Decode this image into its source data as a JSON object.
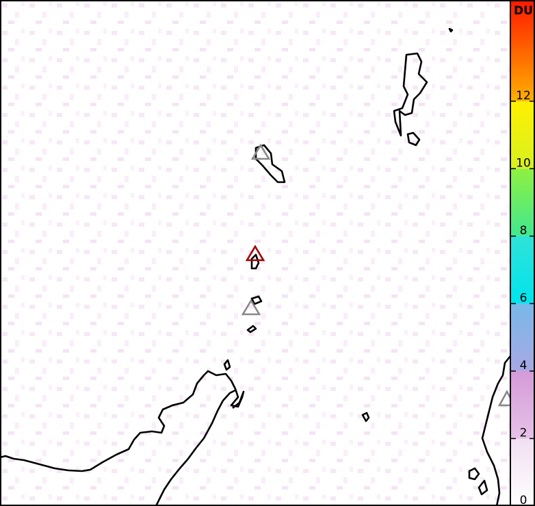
{
  "colorbar": {
    "title": "DU",
    "range": [
      0,
      15
    ],
    "ticks": [
      0,
      2,
      4,
      6,
      8,
      10,
      12
    ],
    "bands": [
      {
        "from": 0,
        "to": 2,
        "colors": [
          "#ffffff",
          "#f1dff2"
        ]
      },
      {
        "from": 2,
        "to": 4,
        "colors": [
          "#e6c2e8",
          "#d49ad8"
        ]
      },
      {
        "from": 4,
        "to": 6,
        "colors": [
          "#a8a8e4",
          "#78b8e8"
        ]
      },
      {
        "from": 6,
        "to": 8,
        "colors": [
          "#00e4ee",
          "#30e2d8"
        ]
      },
      {
        "from": 8,
        "to": 10,
        "colors": [
          "#40e890",
          "#90f040"
        ]
      },
      {
        "from": 10,
        "to": 12,
        "colors": [
          "#d8f020",
          "#fff000"
        ]
      },
      {
        "from": 12,
        "to": 15,
        "colors": [
          "#ffb000",
          "#ff1800"
        ]
      }
    ]
  }
}
